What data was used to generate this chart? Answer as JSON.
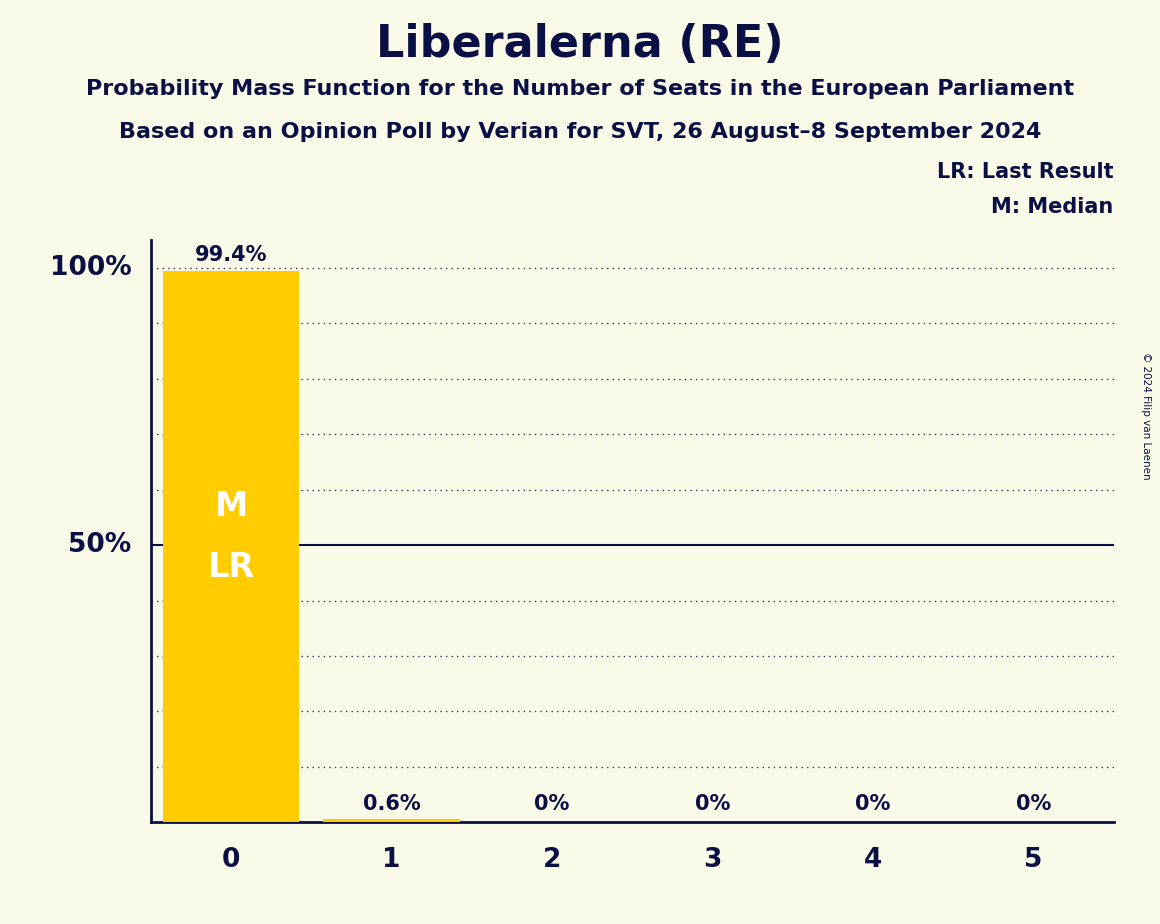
{
  "title": "Liberalerna (RE)",
  "subtitle1": "Probability Mass Function for the Number of Seats in the European Parliament",
  "subtitle2": "Based on an Opinion Poll by Verian for SVT, 26 August–8 September 2024",
  "copyright": "© 2024 Filip van Laenen",
  "seats": [
    0,
    1,
    2,
    3,
    4,
    5
  ],
  "probabilities": [
    99.4,
    0.6,
    0.0,
    0.0,
    0.0,
    0.0
  ],
  "bar_color": "#FFCC00",
  "bar_labels": [
    "99.4%",
    "0.6%",
    "0%",
    "0%",
    "0%",
    "0%"
  ],
  "median_seat": 0,
  "last_result_seat": 0,
  "background_color": "#FAFAE8",
  "text_color": "#0A1045",
  "legend_lr": "LR: Last Result",
  "legend_m": "M: Median",
  "ylabel_100": "100%",
  "ylabel_50": "50%",
  "xlim": [
    -0.5,
    5.5
  ],
  "ylim": [
    0,
    105
  ],
  "grid_y_values": [
    10,
    20,
    30,
    40,
    50,
    60,
    70,
    80,
    90,
    100
  ],
  "solid_line_y": 50
}
